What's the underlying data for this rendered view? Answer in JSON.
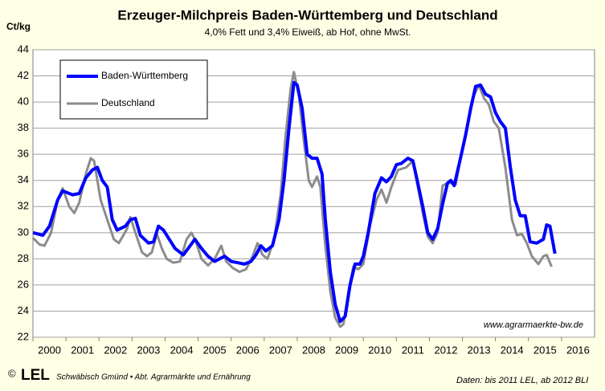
{
  "chart_data": {
    "type": "line",
    "title": "Erzeuger-Milchpreis Baden-Württemberg und Deutschland",
    "subtitle": "4,0% Fett und 3,4% Eiweiß, ab Hof, ohne MwSt.",
    "y_label": "Ct/kg",
    "watermark": "www.agrarmaerkte-bw.de",
    "footer_copyright": "©",
    "footer_logo": "LEL",
    "footer_left": "Schwäbisch Gmünd • Abt. Agrarmärkte und Ernährung",
    "footer_right": "Daten: bis 2011 LEL, ab 2012 BLI",
    "xlim": [
      2000,
      2017
    ],
    "xticks": [
      2000,
      2001,
      2002,
      2003,
      2004,
      2005,
      2006,
      2007,
      2008,
      2009,
      2010,
      2011,
      2012,
      2013,
      2014,
      2015,
      2016
    ],
    "ylim": [
      22,
      44
    ],
    "yticks": [
      22,
      24,
      26,
      28,
      30,
      32,
      34,
      36,
      38,
      40,
      42,
      44
    ],
    "grid": true,
    "legend": "top-left",
    "series": [
      {
        "name": "Baden-Württemberg",
        "color": "#0000ff",
        "x": [
          2000.0,
          2000.3,
          2000.5,
          2000.75,
          2000.9,
          2001.2,
          2001.4,
          2001.6,
          2001.8,
          2001.95,
          2002.1,
          2002.25,
          2002.4,
          2002.55,
          2002.8,
          2002.95,
          2003.1,
          2003.25,
          2003.5,
          2003.65,
          2003.8,
          2003.95,
          2004.1,
          2004.3,
          2004.55,
          2004.7,
          2004.9,
          2005.1,
          2005.3,
          2005.5,
          2005.8,
          2006.0,
          2006.2,
          2006.4,
          2006.6,
          2006.75,
          2006.9,
          2007.05,
          2007.25,
          2007.45,
          2007.6,
          2007.75,
          2007.9,
          2008.0,
          2008.15,
          2008.3,
          2008.45,
          2008.6,
          2008.75,
          2008.85,
          2009.0,
          2009.15,
          2009.3,
          2009.45,
          2009.6,
          2009.75,
          2009.9,
          2010.0,
          2010.15,
          2010.35,
          2010.55,
          2010.7,
          2010.85,
          2011.0,
          2011.15,
          2011.35,
          2011.5,
          2011.65,
          2011.8,
          2011.95,
          2012.1,
          2012.25,
          2012.4,
          2012.55,
          2012.65,
          2012.75,
          2012.95,
          2013.1,
          2013.25,
          2013.4,
          2013.55,
          2013.7,
          2013.85,
          2014.0,
          2014.15,
          2014.3,
          2014.45,
          2014.6,
          2014.75,
          2014.9,
          2015.05,
          2015.25,
          2015.45,
          2015.55,
          2015.65,
          2015.8
        ],
        "values": [
          30.0,
          29.8,
          30.5,
          32.5,
          33.2,
          32.9,
          33.0,
          34.2,
          34.8,
          35.0,
          34.0,
          33.5,
          31.0,
          30.2,
          30.5,
          31.0,
          31.1,
          29.8,
          29.2,
          29.3,
          30.5,
          30.2,
          29.6,
          28.8,
          28.3,
          28.8,
          29.5,
          28.8,
          28.2,
          27.8,
          28.2,
          27.8,
          27.7,
          27.6,
          27.8,
          28.3,
          29.0,
          28.6,
          29.0,
          31.0,
          34.0,
          38.0,
          41.5,
          41.3,
          39.5,
          36.0,
          35.7,
          35.7,
          34.5,
          31.0,
          27.0,
          24.5,
          23.2,
          23.6,
          26.0,
          27.6,
          27.6,
          28.2,
          30.0,
          33.0,
          34.2,
          33.9,
          34.3,
          35.2,
          35.3,
          35.7,
          35.5,
          33.8,
          32.0,
          30.0,
          29.5,
          30.3,
          32.2,
          33.8,
          34.0,
          33.6,
          35.8,
          37.5,
          39.5,
          41.2,
          41.3,
          40.6,
          40.4,
          39.2,
          38.5,
          38.0,
          35.0,
          32.5,
          31.3,
          31.3,
          29.3,
          29.2,
          29.5,
          30.6,
          30.5,
          28.4
        ]
      },
      {
        "name": "Deutschland",
        "color": "#8c8c8c",
        "x": [
          2000.0,
          2000.2,
          2000.35,
          2000.55,
          2000.75,
          2000.9,
          2001.1,
          2001.25,
          2001.4,
          2001.6,
          2001.75,
          2001.85,
          2002.05,
          2002.25,
          2002.45,
          2002.6,
          2002.85,
          2002.95,
          2003.1,
          2003.3,
          2003.45,
          2003.6,
          2003.75,
          2003.9,
          2004.05,
          2004.25,
          2004.45,
          2004.65,
          2004.8,
          2004.95,
          2005.1,
          2005.3,
          2005.5,
          2005.7,
          2005.85,
          2006.05,
          2006.25,
          2006.45,
          2006.65,
          2006.8,
          2006.95,
          2007.1,
          2007.3,
          2007.5,
          2007.65,
          2007.8,
          2007.9,
          2008.05,
          2008.2,
          2008.35,
          2008.45,
          2008.6,
          2008.7,
          2008.85,
          2009.0,
          2009.15,
          2009.3,
          2009.4,
          2009.55,
          2009.7,
          2009.85,
          2010.0,
          2010.2,
          2010.4,
          2010.55,
          2010.7,
          2010.85,
          2011.05,
          2011.3,
          2011.5,
          2011.65,
          2011.8,
          2011.95,
          2012.1,
          2012.25,
          2012.4,
          2012.55,
          2012.7,
          2012.8,
          2013.0,
          2013.2,
          2013.35,
          2013.5,
          2013.65,
          2013.8,
          2013.95,
          2014.1,
          2014.3,
          2014.5,
          2014.65,
          2014.8,
          2014.95,
          2015.1,
          2015.3,
          2015.45,
          2015.55,
          2015.7
        ],
        "values": [
          29.6,
          29.1,
          29.0,
          30.0,
          32.5,
          33.4,
          32.0,
          31.5,
          32.3,
          34.5,
          35.7,
          35.5,
          32.5,
          31.0,
          29.5,
          29.2,
          30.3,
          31.2,
          30.0,
          28.5,
          28.2,
          28.5,
          29.9,
          28.8,
          28.0,
          27.7,
          27.8,
          29.5,
          30.0,
          29.2,
          28.0,
          27.5,
          28.0,
          29.0,
          27.8,
          27.3,
          27.0,
          27.2,
          28.2,
          29.2,
          28.3,
          28.0,
          29.5,
          33.0,
          37.5,
          41.0,
          42.3,
          40.5,
          37.0,
          34.0,
          33.5,
          34.3,
          33.5,
          29.0,
          25.5,
          23.5,
          22.8,
          23.0,
          25.5,
          27.4,
          27.2,
          27.6,
          30.5,
          32.5,
          33.3,
          32.3,
          33.5,
          34.8,
          35.0,
          35.5,
          33.5,
          31.5,
          29.7,
          29.2,
          30.0,
          33.6,
          33.8,
          33.8,
          33.7,
          36.5,
          38.8,
          40.5,
          41.3,
          40.3,
          39.8,
          38.5,
          38.0,
          35.0,
          31.0,
          29.8,
          29.9,
          29.2,
          28.2,
          27.6,
          28.2,
          28.3,
          27.4
        ]
      }
    ]
  }
}
